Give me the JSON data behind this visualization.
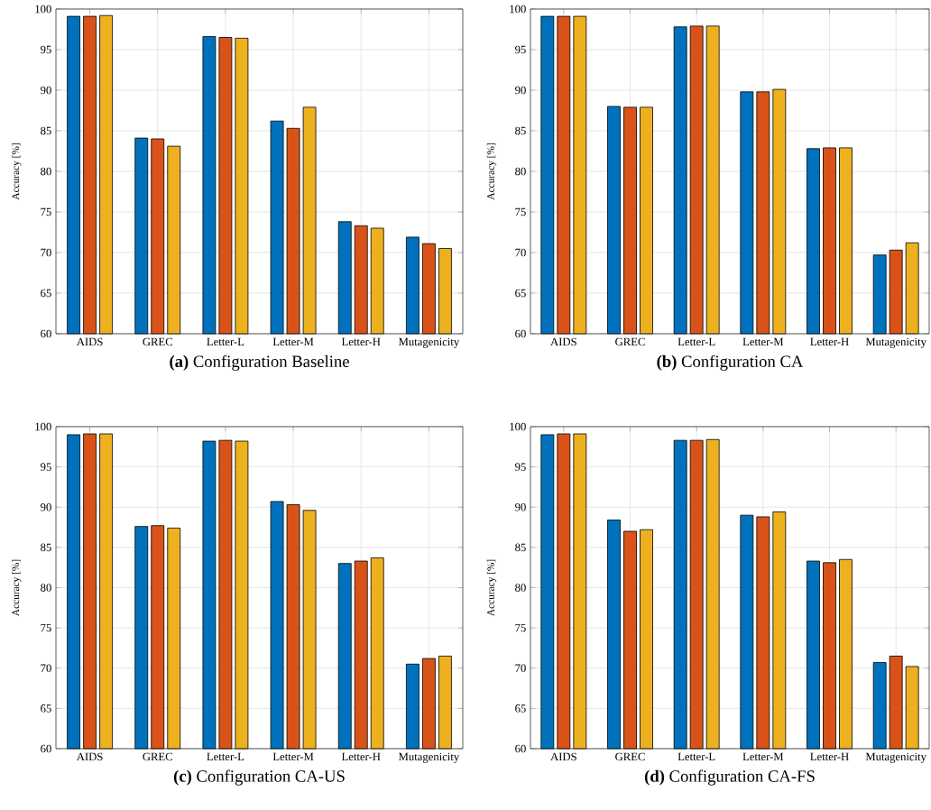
{
  "chart_data": [
    {
      "type": "bar",
      "title": "**(a)** Configuration Baseline",
      "ylabel": "Accuracy [%]",
      "categories": [
        "AIDS",
        "GREC",
        "Letter-L",
        "Letter-M",
        "Letter-H",
        "Mutagenicity"
      ],
      "ylim": [
        60,
        100
      ],
      "yticks": [
        60,
        65,
        70,
        75,
        80,
        85,
        90,
        95,
        100
      ],
      "grid": true,
      "series": [
        {
          "color": "#0072bd",
          "values": [
            99.1,
            84.1,
            96.6,
            86.2,
            73.8,
            71.9
          ]
        },
        {
          "color": "#d95319",
          "values": [
            99.1,
            84.0,
            96.5,
            85.3,
            73.3,
            71.1
          ]
        },
        {
          "color": "#edb120",
          "values": [
            99.2,
            83.1,
            96.4,
            87.9,
            73.0,
            70.5
          ]
        }
      ]
    },
    {
      "type": "bar",
      "title": "**(b)** Configuration CA",
      "ylabel": "Accuracy [%]",
      "categories": [
        "AIDS",
        "GREC",
        "Letter-L",
        "Letter-M",
        "Letter-H",
        "Mutagenicity"
      ],
      "ylim": [
        60,
        100
      ],
      "yticks": [
        60,
        65,
        70,
        75,
        80,
        85,
        90,
        95,
        100
      ],
      "grid": true,
      "series": [
        {
          "color": "#0072bd",
          "values": [
            99.1,
            88.0,
            97.8,
            89.8,
            82.8,
            69.7
          ]
        },
        {
          "color": "#d95319",
          "values": [
            99.1,
            87.9,
            97.9,
            89.8,
            82.9,
            70.3
          ]
        },
        {
          "color": "#edb120",
          "values": [
            99.1,
            87.9,
            97.9,
            90.1,
            82.9,
            71.2
          ]
        }
      ]
    },
    {
      "type": "bar",
      "title": "**(c)** Configuration CA-US",
      "ylabel": "Accuracy [%]",
      "categories": [
        "AIDS",
        "GREC",
        "Letter-L",
        "Letter-M",
        "Letter-H",
        "Mutagenicity"
      ],
      "ylim": [
        60,
        100
      ],
      "yticks": [
        60,
        65,
        70,
        75,
        80,
        85,
        90,
        95,
        100
      ],
      "grid": true,
      "series": [
        {
          "color": "#0072bd",
          "values": [
            99.0,
            87.6,
            98.2,
            90.7,
            83.0,
            70.5
          ]
        },
        {
          "color": "#d95319",
          "values": [
            99.1,
            87.7,
            98.3,
            90.3,
            83.3,
            71.2
          ]
        },
        {
          "color": "#edb120",
          "values": [
            99.1,
            87.4,
            98.2,
            89.6,
            83.7,
            71.5
          ]
        }
      ]
    },
    {
      "type": "bar",
      "title": "**(d)** Configuration CA-FS",
      "ylabel": "Accuracy [%]",
      "categories": [
        "AIDS",
        "GREC",
        "Letter-L",
        "Letter-M",
        "Letter-H",
        "Mutagenicity"
      ],
      "ylim": [
        60,
        100
      ],
      "yticks": [
        60,
        65,
        70,
        75,
        80,
        85,
        90,
        95,
        100
      ],
      "grid": true,
      "series": [
        {
          "color": "#0072bd",
          "values": [
            99.0,
            88.4,
            98.3,
            89.0,
            83.3,
            70.7
          ]
        },
        {
          "color": "#d95319",
          "values": [
            99.1,
            87.0,
            98.3,
            88.8,
            83.1,
            71.5
          ]
        },
        {
          "color": "#edb120",
          "values": [
            99.1,
            87.2,
            98.4,
            89.4,
            83.5,
            70.2
          ]
        }
      ]
    }
  ]
}
